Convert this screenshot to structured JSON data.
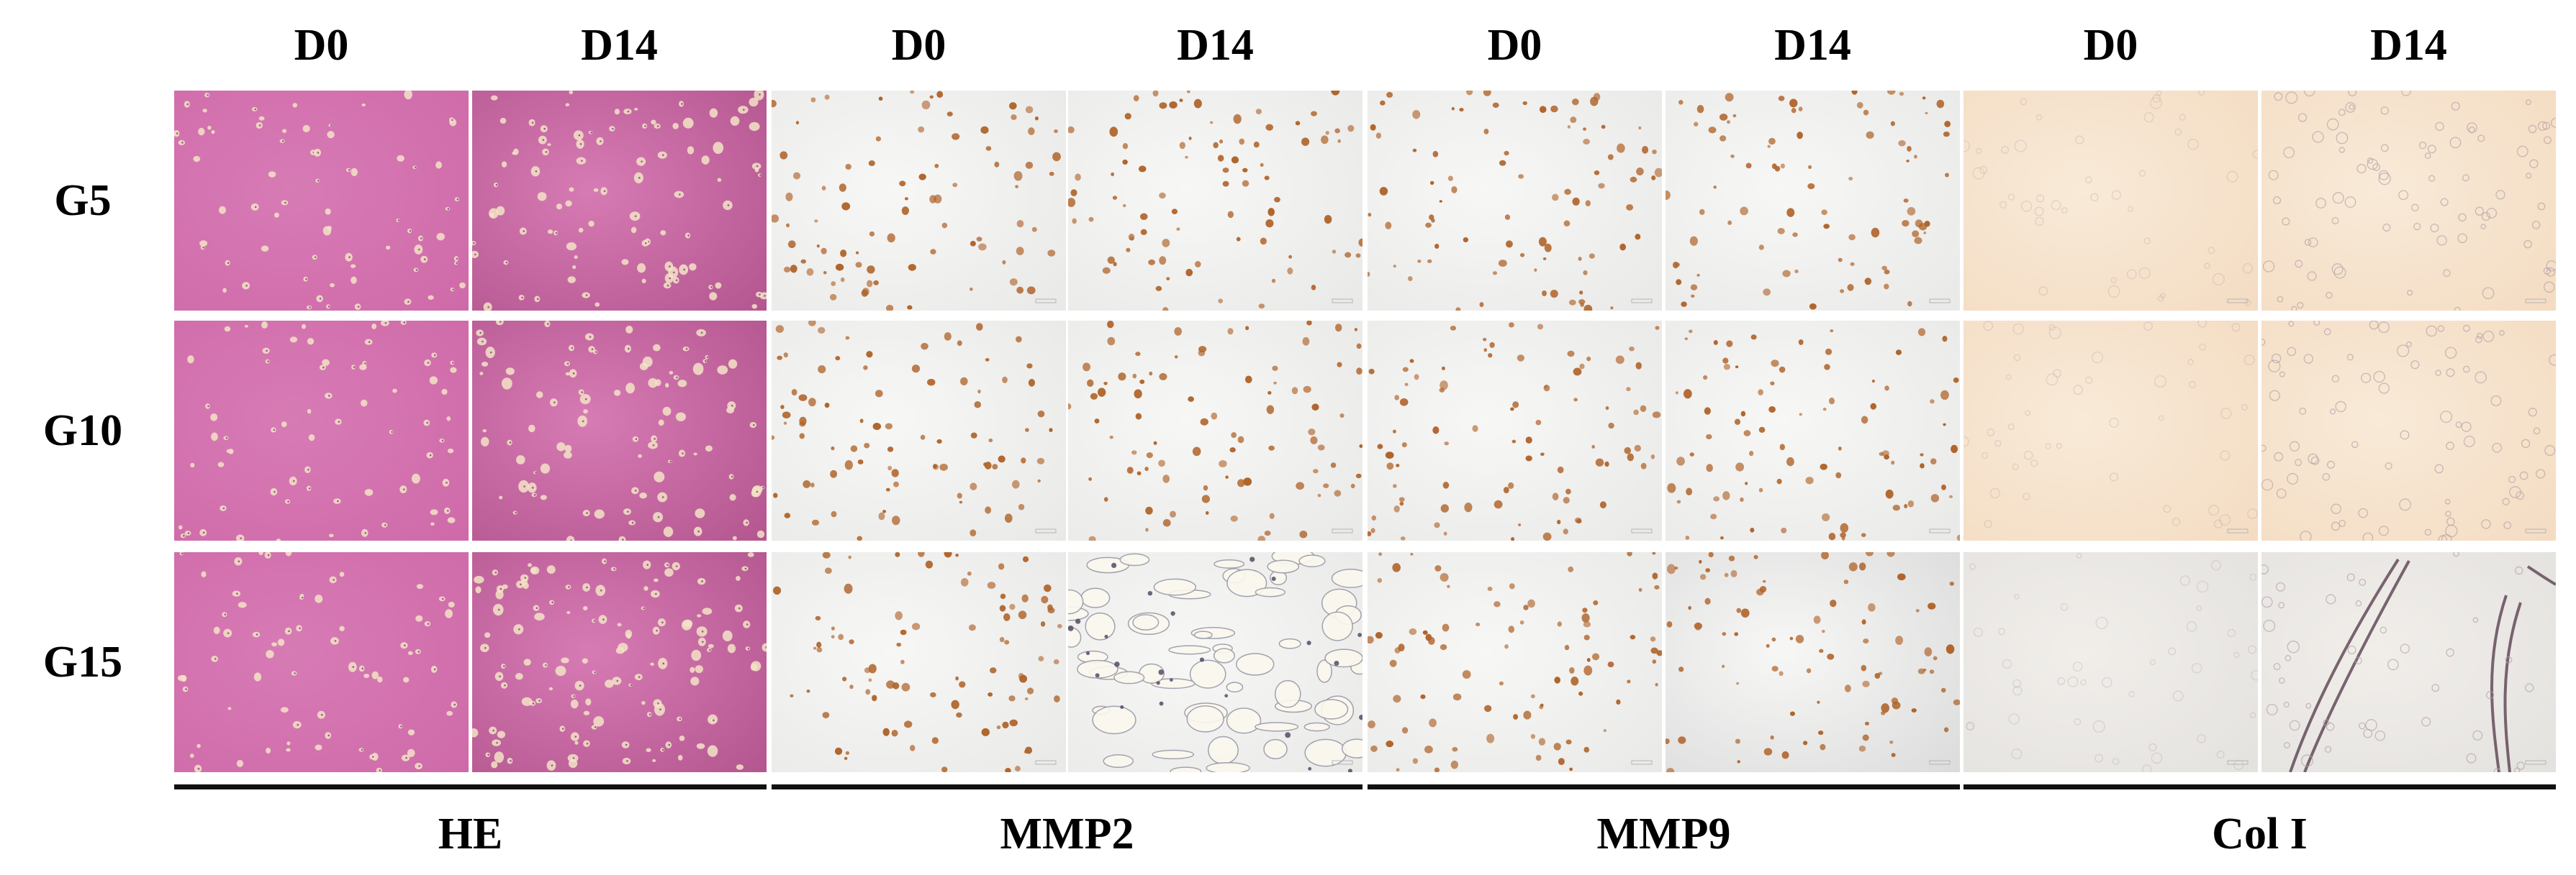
{
  "column_headers": [
    "D0",
    "D14",
    "D0",
    "D14",
    "D0",
    "D14",
    "D0",
    "D14"
  ],
  "row_labels": [
    "G5",
    "G10",
    "G15"
  ],
  "stain_groups": [
    "HE",
    "MMP2",
    "MMP9",
    "Col I"
  ],
  "colors": {
    "he_background": "#d77bb5",
    "he_cell": "#f3e3c6",
    "ihc_background": "#f3f3f2",
    "ihc_positive": "#b0642a",
    "col_background": "#f8ead8",
    "col_cell": "#b7a3a8",
    "fiber": "#5a4150"
  }
}
